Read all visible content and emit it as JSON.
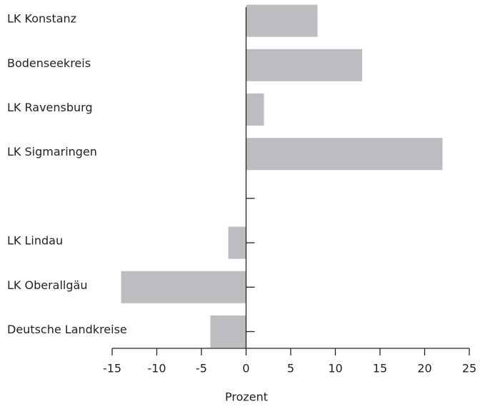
{
  "chart_data": {
    "type": "barh",
    "categories": [
      "LK Konstanz",
      "Bodenseekreis",
      "LK Ravensburg",
      "LK Sigmaringen",
      null,
      "LK Lindau",
      "LK Oberallgäu",
      "Deutsche Landkreise"
    ],
    "values": [
      8,
      13,
      2,
      22,
      null,
      -2,
      -14,
      -4
    ],
    "color": "#bcbdc0",
    "xlim": [
      -15,
      25
    ],
    "xticks": [
      -15,
      -10,
      -5,
      0,
      5,
      10,
      15,
      20,
      25
    ],
    "x_label": "Prozent"
  }
}
